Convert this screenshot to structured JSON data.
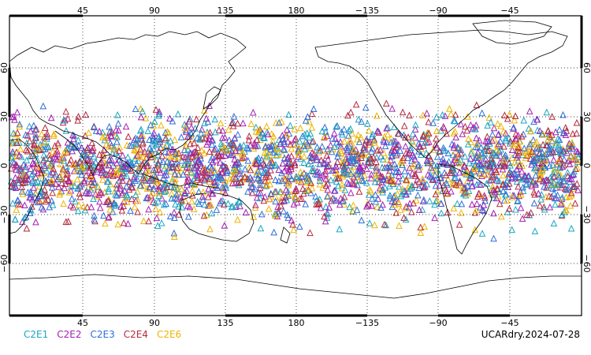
{
  "map": {
    "top_lon_labels": [
      "45",
      "90",
      "135",
      "180",
      "−135",
      "−90",
      "−45"
    ],
    "bottom_lon_labels": [
      "45",
      "90",
      "135",
      "180",
      "−135",
      "−90",
      "−45"
    ],
    "left_lat_labels": [
      "60",
      "30",
      "0",
      "−30",
      "−60"
    ],
    "right_lat_labels": [
      "60",
      "30",
      "0",
      "−30",
      "−60"
    ]
  },
  "legend": [
    {
      "label": "C2E1",
      "color": "#1aa7c4"
    },
    {
      "label": "C2E2",
      "color": "#a51fb5"
    },
    {
      "label": "C2E3",
      "color": "#2d6fd8"
    },
    {
      "label": "C2E4",
      "color": "#b52a3e"
    },
    {
      "label": "C2E6",
      "color": "#f0b400"
    }
  ],
  "stamp": "UCARdry.2024-07-28",
  "colors": {
    "land_outline": "#000000",
    "background": "#ffffff"
  }
}
